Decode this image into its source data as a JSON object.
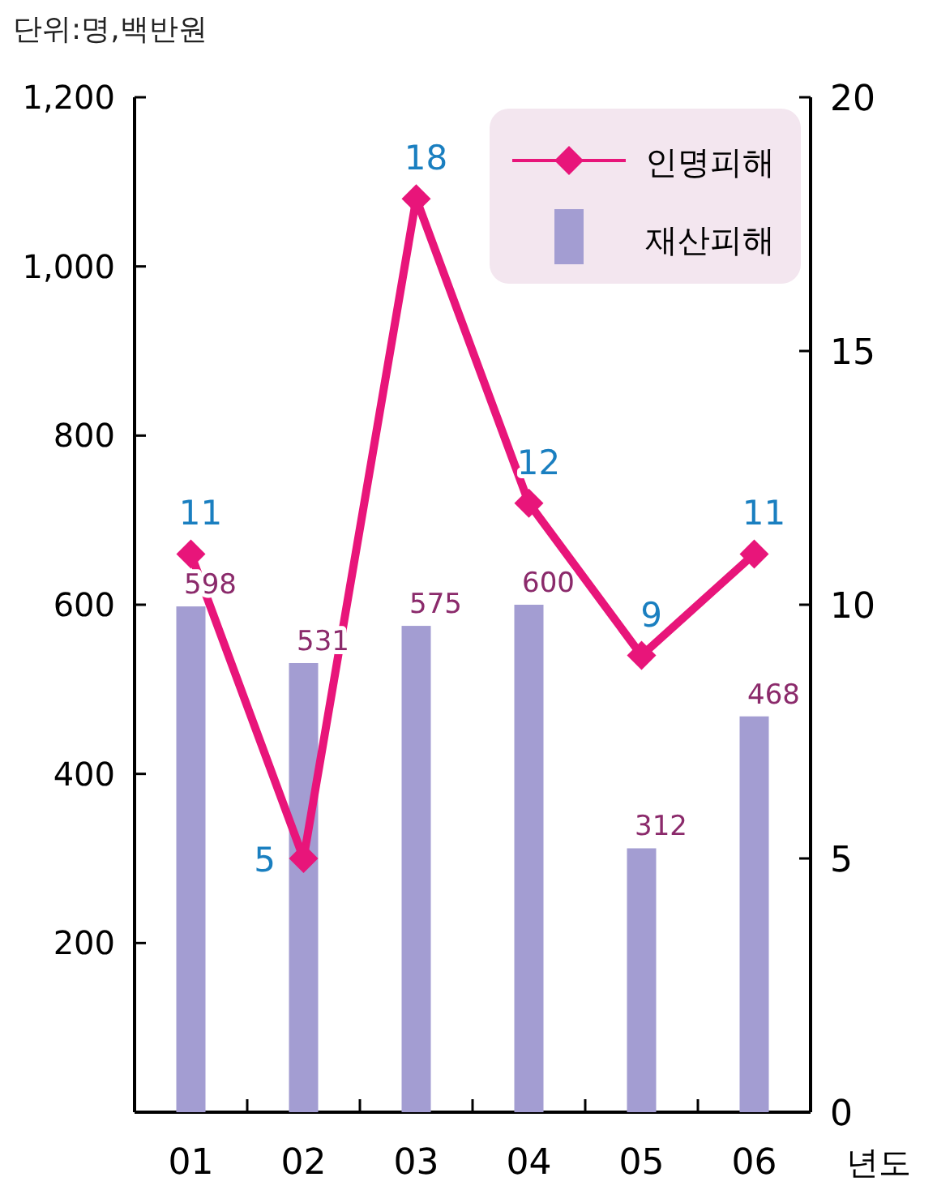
{
  "chart_data": {
    "type": "bar",
    "title": "단위:명,백반원",
    "xlabel": "년도",
    "categories": [
      "01",
      "02",
      "03",
      "04",
      "05",
      "06"
    ],
    "series": [
      {
        "name": "재산피해",
        "color": "#a39dd2",
        "values": [
          598,
          531,
          575,
          600,
          312,
          468
        ]
      },
      {
        "name": "인명피해",
        "type": "line",
        "axis": "y2",
        "color": "#e8157a",
        "marker": "diamond",
        "values": [
          11,
          5,
          18,
          12,
          9,
          11
        ]
      }
    ],
    "ylim": [
      0,
      1200
    ],
    "yticks": [
      200,
      400,
      600,
      800,
      {
        "value": 1000,
        "label": "1,000"
      },
      {
        "value": 1200,
        "label": "1,200"
      }
    ],
    "y2lim": [
      0,
      20
    ],
    "y2ticks": [
      0,
      5,
      10,
      15,
      20
    ],
    "data_labels": true,
    "legend": "top right",
    "grid": false
  }
}
